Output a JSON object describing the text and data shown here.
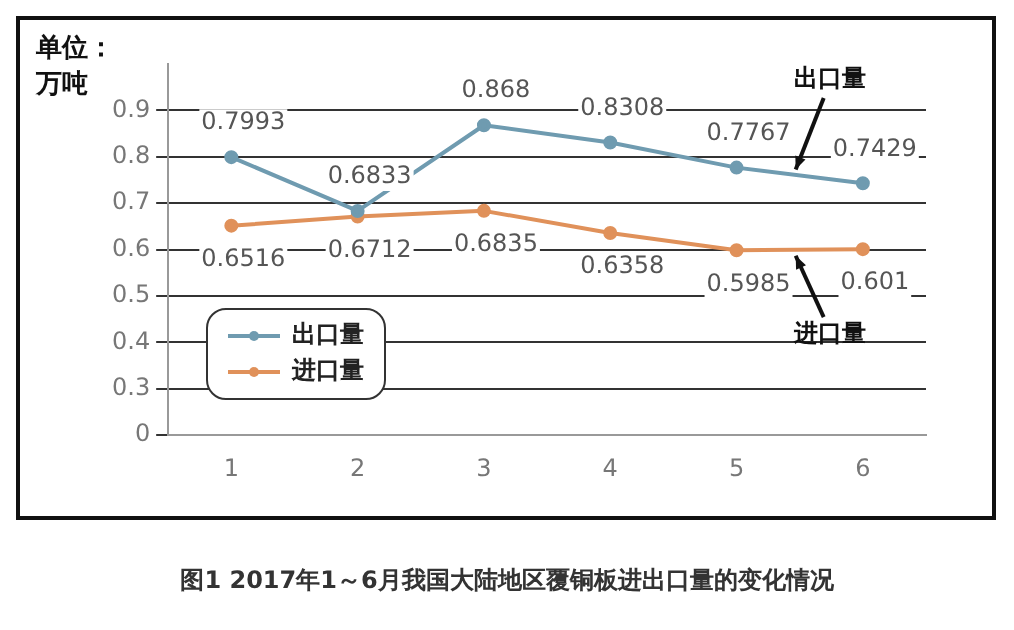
{
  "chart_data": {
    "type": "line",
    "title": "图1 2017年1～6月我国大陆地区覆铜板进出口量的变化情况",
    "ylabel": "单位：万吨",
    "categories": [
      "1",
      "2",
      "3",
      "4",
      "5",
      "6"
    ],
    "series": [
      {
        "name": "出口量",
        "color": "#6f9bb0",
        "values": [
          0.7993,
          0.6833,
          0.868,
          0.8308,
          0.7767,
          0.7429
        ]
      },
      {
        "name": "进口量",
        "color": "#e0915a",
        "values": [
          0.6516,
          0.6712,
          0.6835,
          0.6358,
          0.5985,
          0.601
        ]
      }
    ],
    "ylim": [
      0.2,
      1.0
    ],
    "yticks": [
      {
        "value": 0.2,
        "label": "0"
      },
      0.3,
      0.4,
      0.5,
      0.6,
      0.7,
      0.8,
      0.9
    ],
    "grid": "y",
    "legend": "bottom left",
    "marker": "circle",
    "line_style": "solid",
    "data_labels": true,
    "annotations": [
      "出口量",
      "进口量"
    ]
  }
}
